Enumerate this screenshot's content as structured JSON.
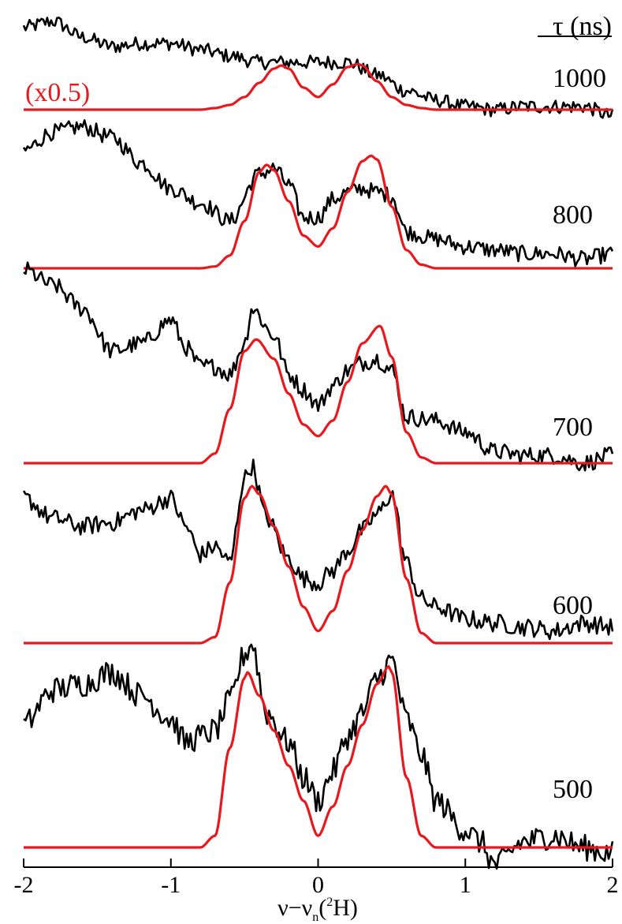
{
  "chart_data": {
    "type": "line",
    "title": "",
    "xlabel": "ν−νn(²H)",
    "xlabel_parts": {
      "main": "ν−ν",
      "sub": "n",
      "paren_open": "(",
      "sup": "2",
      "tail": "H)"
    },
    "ylabel": "",
    "xlim": [
      -2,
      2
    ],
    "x_ticks": [
      -2,
      -1,
      0,
      1,
      2
    ],
    "x_tick_labels": [
      "-2",
      "-1",
      "0",
      "1",
      "2"
    ],
    "grid": false,
    "legend_title": "τ (ns)",
    "scale_annotation": "(x0.5)",
    "stacked_offset_traces": true,
    "colors": {
      "experimental": "#000000",
      "simulation": "#e8191e",
      "axis": "#000000"
    },
    "series": [
      {
        "name": "1000",
        "baseline": 0,
        "experimental": {
          "x": [
            -2,
            -1.8,
            -1.6,
            -1.4,
            -1.2,
            -1,
            -0.8,
            -0.6,
            -0.4,
            -0.2,
            0,
            0.2,
            0.4,
            0.6,
            0.8,
            1,
            1.2,
            1.4,
            1.6,
            1.8,
            2
          ],
          "y": [
            0.52,
            0.56,
            0.46,
            0.4,
            0.42,
            0.42,
            0.38,
            0.34,
            0.3,
            0.3,
            0.3,
            0.3,
            0.22,
            0.12,
            0.06,
            0.02,
            0.0,
            0.02,
            0.02,
            0.02,
            -0.04
          ]
        },
        "simulation": {
          "x": [
            -2,
            -0.8,
            -0.7,
            -0.6,
            -0.5,
            -0.4,
            -0.3,
            -0.25,
            -0.2,
            -0.1,
            0,
            0.1,
            0.2,
            0.27,
            0.3,
            0.4,
            0.5,
            0.6,
            0.7,
            0.8,
            2
          ],
          "y": [
            0,
            0,
            0.01,
            0.03,
            0.08,
            0.17,
            0.26,
            0.28,
            0.26,
            0.14,
            0.08,
            0.16,
            0.27,
            0.29,
            0.28,
            0.18,
            0.08,
            0.03,
            0.01,
            0,
            0
          ]
        }
      },
      {
        "name": "800",
        "baseline": 0,
        "experimental": {
          "x": [
            -2,
            -1.8,
            -1.6,
            -1.4,
            -1.2,
            -1,
            -0.8,
            -0.6,
            -0.4,
            -0.3,
            -0.2,
            -0.1,
            0,
            0.1,
            0.2,
            0.3,
            0.4,
            0.5,
            0.6,
            0.8,
            1,
            1.2,
            1.4,
            1.6,
            1.8,
            2
          ],
          "y": [
            0.65,
            0.75,
            0.78,
            0.72,
            0.58,
            0.44,
            0.36,
            0.26,
            0.52,
            0.55,
            0.46,
            0.28,
            0.28,
            0.38,
            0.42,
            0.44,
            0.42,
            0.4,
            0.2,
            0.16,
            0.12,
            0.1,
            0.08,
            0.08,
            0.05,
            0.08
          ]
        },
        "simulation": {
          "x": [
            -2,
            -0.8,
            -0.7,
            -0.6,
            -0.5,
            -0.4,
            -0.35,
            -0.3,
            -0.2,
            -0.1,
            0,
            0.1,
            0.2,
            0.3,
            0.36,
            0.4,
            0.5,
            0.6,
            0.7,
            0.8,
            2
          ],
          "y": [
            0,
            0,
            0.01,
            0.07,
            0.26,
            0.53,
            0.57,
            0.54,
            0.37,
            0.18,
            0.12,
            0.22,
            0.42,
            0.59,
            0.62,
            0.6,
            0.34,
            0.1,
            0.02,
            0,
            0
          ]
        }
      },
      {
        "name": "700",
        "baseline": 0,
        "experimental": {
          "x": [
            -2,
            -1.8,
            -1.6,
            -1.4,
            -1.2,
            -1,
            -0.9,
            -0.8,
            -0.7,
            -0.6,
            -0.5,
            -0.45,
            -0.3,
            -0.2,
            -0.1,
            0,
            0.1,
            0.2,
            0.3,
            0.4,
            0.5,
            0.6,
            0.8,
            1,
            1.2,
            1.4,
            1.6,
            1.8,
            2
          ],
          "y": [
            1.0,
            0.92,
            0.8,
            0.58,
            0.62,
            0.74,
            0.6,
            0.5,
            0.5,
            0.46,
            0.62,
            0.8,
            0.66,
            0.46,
            0.38,
            0.3,
            0.4,
            0.48,
            0.52,
            0.54,
            0.48,
            0.24,
            0.22,
            0.16,
            0.06,
            0.04,
            0.04,
            0.0,
            0.04
          ]
        },
        "simulation": {
          "x": [
            -2,
            -0.8,
            -0.7,
            -0.6,
            -0.5,
            -0.42,
            -0.3,
            -0.2,
            -0.1,
            0,
            0.1,
            0.2,
            0.3,
            0.42,
            0.5,
            0.6,
            0.7,
            0.8,
            2
          ],
          "y": [
            0,
            0,
            0.05,
            0.28,
            0.58,
            0.64,
            0.54,
            0.36,
            0.2,
            0.14,
            0.22,
            0.42,
            0.62,
            0.71,
            0.55,
            0.16,
            0.03,
            0,
            0
          ]
        }
      },
      {
        "name": "600",
        "baseline": 0,
        "experimental": {
          "x": [
            -2,
            -1.8,
            -1.6,
            -1.4,
            -1.2,
            -1,
            -0.9,
            -0.8,
            -0.7,
            -0.6,
            -0.5,
            -0.45,
            -0.35,
            -0.2,
            -0.1,
            0,
            0.1,
            0.2,
            0.3,
            0.4,
            0.5,
            0.6,
            0.7,
            0.8,
            1,
            1.2,
            1.4,
            1.6,
            1.8,
            2
          ],
          "y": [
            0.72,
            0.62,
            0.58,
            0.6,
            0.66,
            0.72,
            0.58,
            0.44,
            0.48,
            0.4,
            0.82,
            0.88,
            0.62,
            0.42,
            0.32,
            0.3,
            0.36,
            0.46,
            0.56,
            0.64,
            0.74,
            0.4,
            0.22,
            0.18,
            0.12,
            0.1,
            0.08,
            0.06,
            0.1,
            0.08
          ]
        },
        "simulation": {
          "x": [
            -2,
            -0.8,
            -0.7,
            -0.6,
            -0.5,
            -0.45,
            -0.4,
            -0.3,
            -0.2,
            -0.1,
            0,
            0.1,
            0.2,
            0.3,
            0.4,
            0.46,
            0.5,
            0.6,
            0.7,
            0.8,
            2
          ],
          "y": [
            0,
            0,
            0.03,
            0.3,
            0.72,
            0.78,
            0.74,
            0.58,
            0.38,
            0.18,
            0.06,
            0.16,
            0.36,
            0.56,
            0.73,
            0.78,
            0.74,
            0.32,
            0.05,
            0,
            0
          ]
        }
      },
      {
        "name": "500",
        "baseline": 0,
        "experimental": {
          "x": [
            -2,
            -1.8,
            -1.6,
            -1.4,
            -1.2,
            -1,
            -0.9,
            -0.8,
            -0.7,
            -0.6,
            -0.5,
            -0.45,
            -0.35,
            -0.2,
            -0.1,
            0,
            0.1,
            0.2,
            0.3,
            0.4,
            0.5,
            0.6,
            0.7,
            0.8,
            1,
            1.1,
            1.2,
            1.4,
            1.6,
            1.8,
            2
          ],
          "y": [
            0.42,
            0.54,
            0.56,
            0.6,
            0.52,
            0.44,
            0.36,
            0.38,
            0.4,
            0.5,
            0.66,
            0.7,
            0.46,
            0.36,
            0.24,
            0.16,
            0.26,
            0.38,
            0.46,
            0.58,
            0.64,
            0.44,
            0.32,
            0.16,
            0.06,
            0.02,
            -0.06,
            0.02,
            0.04,
            0.0,
            -0.02
          ]
        },
        "simulation": {
          "x": [
            -2,
            -0.8,
            -0.7,
            -0.6,
            -0.5,
            -0.48,
            -0.4,
            -0.3,
            -0.2,
            -0.1,
            0,
            0.1,
            0.2,
            0.3,
            0.4,
            0.48,
            0.5,
            0.6,
            0.7,
            0.8,
            2
          ],
          "y": [
            0,
            0,
            0.04,
            0.34,
            0.58,
            0.6,
            0.52,
            0.4,
            0.28,
            0.16,
            0.04,
            0.14,
            0.28,
            0.42,
            0.56,
            0.62,
            0.6,
            0.24,
            0.04,
            0,
            0
          ]
        }
      }
    ]
  }
}
